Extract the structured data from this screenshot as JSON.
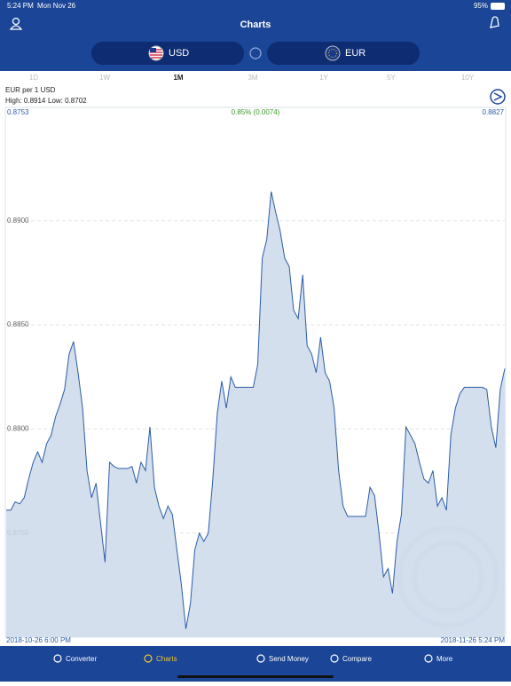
{
  "status_bar": {
    "time": "5:24 PM",
    "date": "Mon Nov 26",
    "battery": "95%"
  },
  "header": {
    "title": "Charts"
  },
  "currencies": {
    "from": "USD",
    "to": "EUR"
  },
  "ranges": {
    "items": [
      "1D",
      "1W",
      "1M",
      "3M",
      "1Y",
      "5Y",
      "10Y"
    ],
    "selected": 2
  },
  "chart_data": {
    "type": "area",
    "title": "EUR per 1 USD",
    "high": "High: 0.8914",
    "low": "Low: 0.8702",
    "open": "0.8753",
    "close": "0.8827",
    "change": "0.85% (0.0074)",
    "x_start": "2018-10-26 6:00 PM",
    "x_end": "2018-11-26 5:24 PM",
    "color": "#2a5ca8",
    "fill": "#ccd9ea",
    "grid": true,
    "ylim": [
      0.87,
      0.8954
    ],
    "yticks": [
      {
        "value": 0.875,
        "label": "0.8750"
      },
      {
        "value": 0.88,
        "label": "0.8800"
      },
      {
        "value": 0.885,
        "label": "0.8850"
      },
      {
        "value": 0.89,
        "label": "0.8900"
      }
    ],
    "values": [
      0.8761,
      0.8761,
      0.8765,
      0.8764,
      0.8767,
      0.8776,
      0.8784,
      0.8789,
      0.8784,
      0.8793,
      0.8797,
      0.8806,
      0.8812,
      0.8819,
      0.8836,
      0.8842,
      0.8827,
      0.881,
      0.878,
      0.8767,
      0.8774,
      0.8755,
      0.8736,
      0.8784,
      0.8782,
      0.8781,
      0.8781,
      0.8781,
      0.8782,
      0.8774,
      0.8784,
      0.878,
      0.8801,
      0.8772,
      0.8763,
      0.8757,
      0.8763,
      0.8759,
      0.8742,
      0.8725,
      0.8704,
      0.8716,
      0.8742,
      0.875,
      0.8746,
      0.875,
      0.8776,
      0.8808,
      0.8823,
      0.881,
      0.8825,
      0.882,
      0.882,
      0.882,
      0.882,
      0.882,
      0.8831,
      0.8882,
      0.8891,
      0.8914,
      0.8904,
      0.8895,
      0.8882,
      0.8878,
      0.8857,
      0.8853,
      0.8874,
      0.884,
      0.8836,
      0.8827,
      0.8844,
      0.8827,
      0.8823,
      0.881,
      0.878,
      0.8763,
      0.8758,
      0.8758,
      0.8758,
      0.8758,
      0.8758,
      0.8772,
      0.8768,
      0.875,
      0.8729,
      0.8733,
      0.8721,
      0.8746,
      0.8759,
      0.8801,
      0.8797,
      0.8793,
      0.8784,
      0.8776,
      0.8774,
      0.878,
      0.8763,
      0.8767,
      0.8761,
      0.8797,
      0.881,
      0.8817,
      0.882,
      0.882,
      0.882,
      0.882,
      0.882,
      0.8819,
      0.8801,
      0.8791,
      0.8819,
      0.8829
    ]
  },
  "tabs": {
    "items": [
      "Converter",
      "Charts",
      "Send Money",
      "Compare",
      "More"
    ],
    "selected": 1
  }
}
